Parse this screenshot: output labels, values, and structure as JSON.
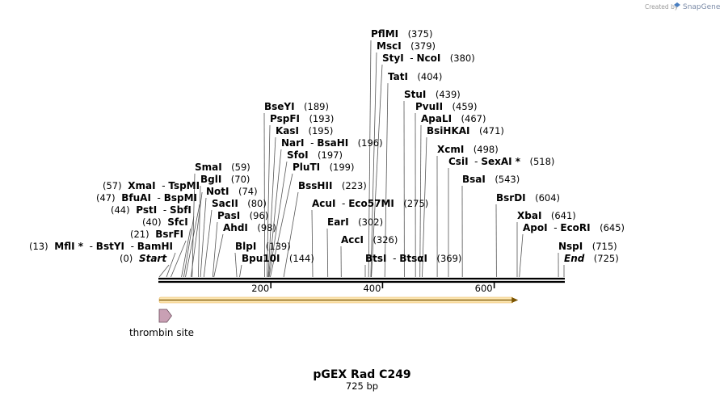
{
  "credit": {
    "prefix": "Created by",
    "brand": "SnapGene"
  },
  "title": "pGEX Rad C249",
  "subtitle": "725 bp",
  "map": {
    "length": 725,
    "ticks": [
      {
        "bp": 200,
        "label": "200"
      },
      {
        "bp": 400,
        "label": "400"
      },
      {
        "bp": 600,
        "label": "600"
      }
    ],
    "sites": [
      {
        "id": "start",
        "names": [
          "Start"
        ],
        "italic": true,
        "pos": "(0)",
        "bp": 0,
        "side": "left"
      },
      {
        "id": "mfli",
        "names": [
          "MflI *",
          "BstYI",
          "BamHI"
        ],
        "pos": "(13)",
        "bp": 13,
        "side": "left"
      },
      {
        "id": "bsrfi",
        "names": [
          "BsrFI"
        ],
        "pos": "(21)",
        "bp": 21,
        "side": "left"
      },
      {
        "id": "sfci",
        "names": [
          "SfcI"
        ],
        "pos": "(40)",
        "bp": 40,
        "side": "left"
      },
      {
        "id": "psti",
        "names": [
          "PstI",
          "SbfI"
        ],
        "pos": "(44)",
        "bp": 44,
        "side": "left"
      },
      {
        "id": "bfuai",
        "names": [
          "BfuAI",
          "BspMI"
        ],
        "pos": "(47)",
        "bp": 47,
        "side": "left"
      },
      {
        "id": "xmai",
        "names": [
          "XmaI",
          "TspMI"
        ],
        "pos": "(57)",
        "bp": 57,
        "side": "left"
      },
      {
        "id": "smai",
        "names": [
          "SmaI"
        ],
        "pos": "(59)",
        "bp": 59,
        "side": "right"
      },
      {
        "id": "bgli",
        "names": [
          "BglI"
        ],
        "pos": "(70)",
        "bp": 70,
        "side": "right"
      },
      {
        "id": "noti",
        "names": [
          "NotI"
        ],
        "pos": "(74)",
        "bp": 74,
        "side": "right"
      },
      {
        "id": "sacii",
        "names": [
          "SacII"
        ],
        "pos": "(80)",
        "bp": 80,
        "side": "right"
      },
      {
        "id": "pasi",
        "names": [
          "PasI"
        ],
        "pos": "(96)",
        "bp": 96,
        "side": "right"
      },
      {
        "id": "ahdi",
        "names": [
          "AhdI"
        ],
        "pos": "(98)",
        "bp": 98,
        "side": "right"
      },
      {
        "id": "blpi",
        "names": [
          "BlpI"
        ],
        "pos": "(139)",
        "bp": 139,
        "side": "right"
      },
      {
        "id": "bpu10i",
        "names": [
          "Bpu10I"
        ],
        "pos": "(144)",
        "bp": 144,
        "side": "right"
      },
      {
        "id": "bseyi",
        "names": [
          "BseYI"
        ],
        "pos": "(189)",
        "bp": 189,
        "side": "right"
      },
      {
        "id": "pspfi",
        "names": [
          "PspFI"
        ],
        "pos": "(193)",
        "bp": 193,
        "side": "right"
      },
      {
        "id": "kasi",
        "names": [
          "KasI"
        ],
        "pos": "(195)",
        "bp": 195,
        "side": "right"
      },
      {
        "id": "nari",
        "names": [
          "NarI",
          "BsaHI"
        ],
        "pos": "(196)",
        "bp": 196,
        "side": "right"
      },
      {
        "id": "sfoi",
        "names": [
          "SfoI"
        ],
        "pos": "(197)",
        "bp": 197,
        "side": "right"
      },
      {
        "id": "pluti",
        "names": [
          "PluTI"
        ],
        "pos": "(199)",
        "bp": 199,
        "side": "right"
      },
      {
        "id": "bsshii",
        "names": [
          "BssHII"
        ],
        "pos": "(223)",
        "bp": 223,
        "side": "right"
      },
      {
        "id": "acui",
        "names": [
          "AcuI",
          "Eco57MI"
        ],
        "pos": "(275)",
        "bp": 275,
        "side": "right"
      },
      {
        "id": "eari",
        "names": [
          "EarI"
        ],
        "pos": "(302)",
        "bp": 302,
        "side": "right"
      },
      {
        "id": "acci",
        "names": [
          "AccI"
        ],
        "pos": "(326)",
        "bp": 326,
        "side": "right"
      },
      {
        "id": "btsi",
        "names": [
          "BtsI",
          "BtsαI"
        ],
        "pos": "(369)",
        "bp": 369,
        "side": "right"
      },
      {
        "id": "pflmi",
        "names": [
          "PflMI"
        ],
        "pos": "(375)",
        "bp": 375,
        "side": "right"
      },
      {
        "id": "msci",
        "names": [
          "MscI"
        ],
        "pos": "(379)",
        "bp": 379,
        "side": "right"
      },
      {
        "id": "styi",
        "names": [
          "StyI",
          "NcoI"
        ],
        "pos": "(380)",
        "bp": 380,
        "side": "right"
      },
      {
        "id": "tati",
        "names": [
          "TatI"
        ],
        "pos": "(404)",
        "bp": 404,
        "side": "right"
      },
      {
        "id": "stui",
        "names": [
          "StuI"
        ],
        "pos": "(439)",
        "bp": 439,
        "side": "right"
      },
      {
        "id": "pvuii",
        "names": [
          "PvuII"
        ],
        "pos": "(459)",
        "bp": 459,
        "side": "right"
      },
      {
        "id": "apali",
        "names": [
          "ApaLI"
        ],
        "pos": "(467)",
        "bp": 467,
        "side": "right"
      },
      {
        "id": "bsihkai",
        "names": [
          "BsiHKAI"
        ],
        "pos": "(471)",
        "bp": 471,
        "side": "right"
      },
      {
        "id": "xcmi",
        "names": [
          "XcmI"
        ],
        "pos": "(498)",
        "bp": 498,
        "side": "right"
      },
      {
        "id": "csii",
        "names": [
          "CsiI",
          "SexAI *"
        ],
        "pos": "(518)",
        "bp": 518,
        "side": "right"
      },
      {
        "id": "bsai",
        "names": [
          "BsaI"
        ],
        "pos": "(543)",
        "bp": 543,
        "side": "right"
      },
      {
        "id": "bsrdi",
        "names": [
          "BsrDI"
        ],
        "pos": "(604)",
        "bp": 604,
        "side": "right"
      },
      {
        "id": "xbai",
        "names": [
          "XbaI"
        ],
        "pos": "(641)",
        "bp": 641,
        "side": "right"
      },
      {
        "id": "apoi",
        "names": [
          "ApoI",
          "EcoRI"
        ],
        "pos": "(645)",
        "bp": 645,
        "side": "right"
      },
      {
        "id": "nspi",
        "names": [
          "NspI"
        ],
        "pos": "(715)",
        "bp": 715,
        "side": "right"
      },
      {
        "id": "end",
        "names": [
          "End"
        ],
        "italic": true,
        "pos": "(725)",
        "bp": 725,
        "side": "right"
      }
    ],
    "features": [
      {
        "name": "thrombin site",
        "start_bp": 0,
        "end_bp": 18,
        "color": "#c9a0b4"
      }
    ],
    "orf": {
      "start_bp": 0,
      "end_bp": 640,
      "color": "#f2b33d"
    }
  }
}
